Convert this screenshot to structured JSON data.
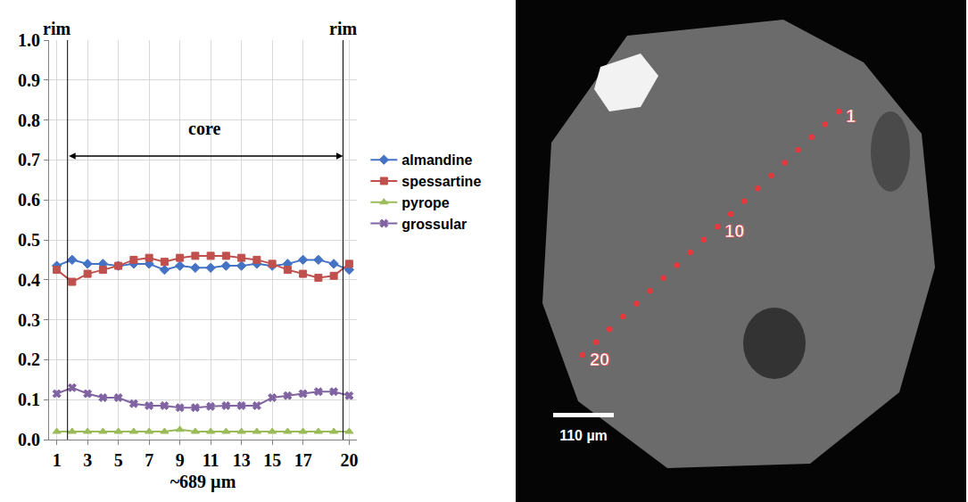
{
  "chart_data": {
    "type": "line",
    "x_title": "~689 µm",
    "x": [
      1,
      2,
      3,
      4,
      5,
      6,
      7,
      8,
      9,
      10,
      11,
      12,
      13,
      14,
      15,
      16,
      17,
      18,
      19,
      20
    ],
    "xlim": [
      0.5,
      20.5
    ],
    "xticks": [
      1,
      3,
      5,
      7,
      9,
      11,
      13,
      15,
      17,
      20
    ],
    "ylim": [
      0,
      1
    ],
    "yticks": [
      {
        "value": 0,
        "label": "0.0"
      },
      0.1,
      0.2,
      0.3,
      0.4,
      0.5,
      0.6,
      0.7,
      0.8,
      0.9,
      {
        "value": 1,
        "label": "1.0"
      }
    ],
    "grid": true,
    "legend": "right",
    "series": [
      {
        "name": "almandine",
        "color": "#4472c4",
        "marker": "diamond",
        "values": [
          0.435,
          0.45,
          0.44,
          0.44,
          0.435,
          0.44,
          0.44,
          0.425,
          0.435,
          0.43,
          0.43,
          0.435,
          0.435,
          0.44,
          0.435,
          0.44,
          0.45,
          0.45,
          0.44,
          0.425
        ]
      },
      {
        "name": "spessartine",
        "color": "#c0504d",
        "marker": "square",
        "values": [
          0.425,
          0.395,
          0.415,
          0.425,
          0.435,
          0.45,
          0.455,
          0.445,
          0.455,
          0.46,
          0.46,
          0.46,
          0.455,
          0.45,
          0.44,
          0.425,
          0.415,
          0.405,
          0.41,
          0.44
        ]
      },
      {
        "name": "pyrope",
        "color": "#9bbb59",
        "marker": "triangle-up",
        "values": [
          0.02,
          0.02,
          0.02,
          0.02,
          0.02,
          0.02,
          0.02,
          0.02,
          0.025,
          0.02,
          0.02,
          0.02,
          0.02,
          0.02,
          0.02,
          0.02,
          0.02,
          0.02,
          0.02,
          0.02
        ]
      },
      {
        "name": "grossular",
        "color": "#8064a2",
        "marker": "x",
        "values": [
          0.115,
          0.13,
          0.115,
          0.105,
          0.105,
          0.09,
          0.085,
          0.085,
          0.08,
          0.08,
          0.083,
          0.085,
          0.085,
          0.085,
          0.105,
          0.11,
          0.115,
          0.12,
          0.12,
          0.11
        ]
      }
    ],
    "annotations": [
      {
        "text": "rim",
        "x": 1.0
      },
      {
        "text": "rim",
        "x": 19.6
      },
      {
        "text": "core",
        "x": 10.6,
        "y": 0.78
      }
    ],
    "core_lines": [
      1.7,
      19.6
    ],
    "core_arrow": {
      "x": [
        1.7,
        19.6
      ],
      "y": 0.71
    }
  },
  "image_panel": {
    "points": 20,
    "point_labels": [
      1,
      10,
      20
    ],
    "scale_bar": "110 µm"
  }
}
